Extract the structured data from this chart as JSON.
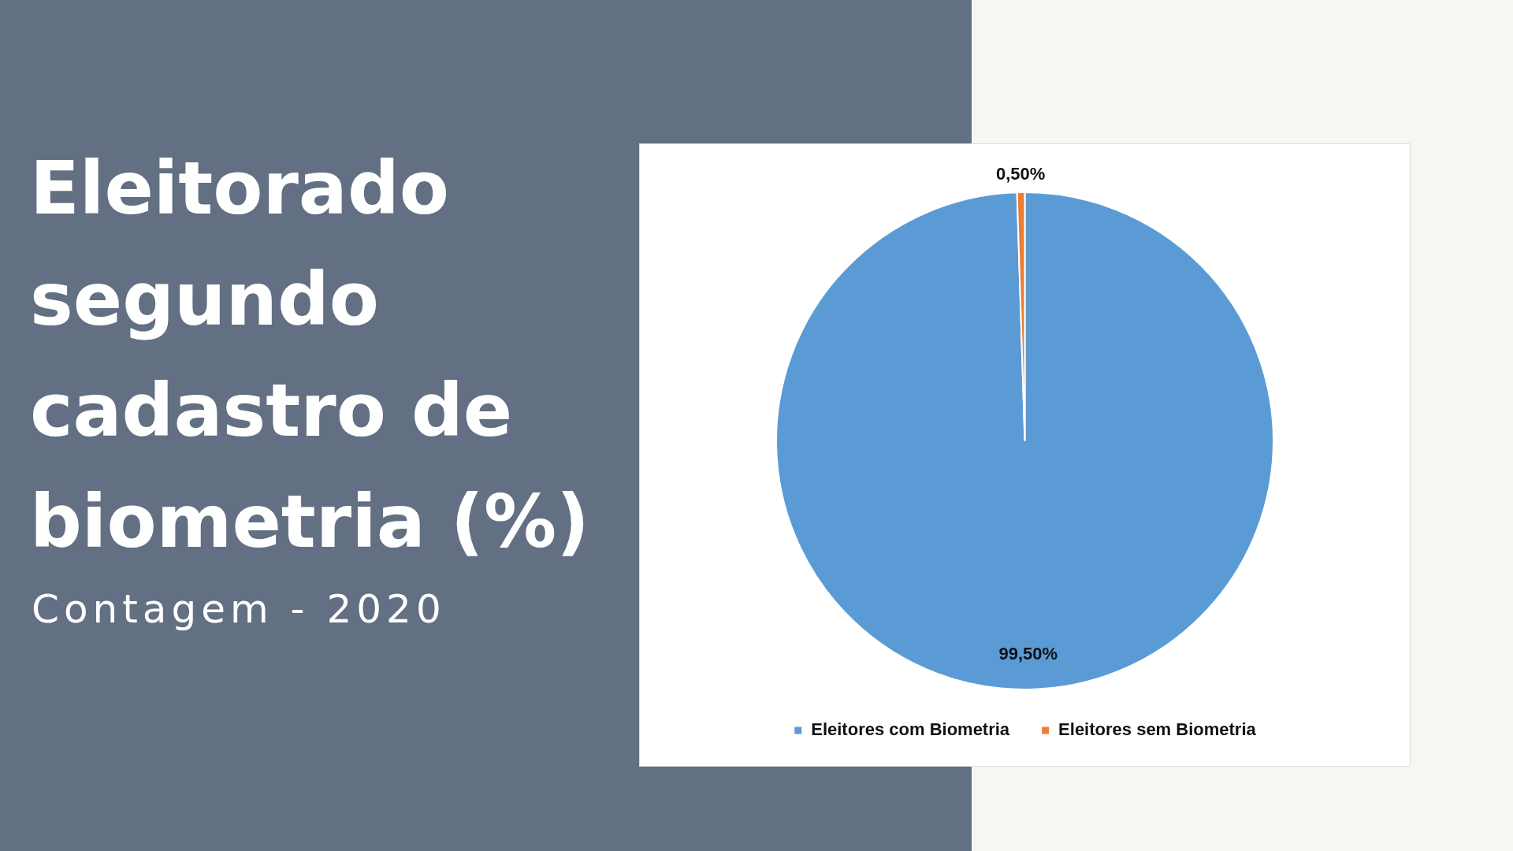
{
  "chart_data": {
    "type": "pie",
    "title": "Eleitorado segundo cadastro de biometria (%)",
    "subtitle": "Contagem - 2020",
    "categories": [
      "Eleitores com Biometria",
      "Eleitores sem Biometria"
    ],
    "values": [
      99.5,
      0.5
    ],
    "colors": [
      "#5b9bd5",
      "#ed7d31"
    ],
    "value_labels": [
      "99,50%",
      "0,50%"
    ],
    "legend": "bottom"
  }
}
